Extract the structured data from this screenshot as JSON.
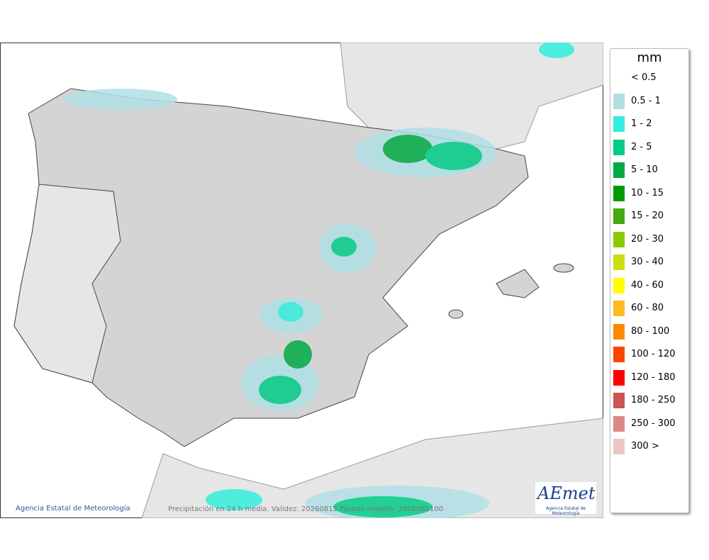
{
  "legend": {
    "title": "mm",
    "items": [
      {
        "label": "< 0.5"
      },
      {
        "label": "0.5 - 1",
        "color": "#b0e0e6"
      },
      {
        "label": "1 - 2",
        "color": "#33eedd"
      },
      {
        "label": "2 - 5",
        "color": "#00cc88"
      },
      {
        "label": "5 - 10",
        "color": "#00aa44"
      },
      {
        "label": "10 - 15",
        "color": "#009900"
      },
      {
        "label": "15 - 20",
        "color": "#44aa11"
      },
      {
        "label": "20 - 30",
        "color": "#88cc00"
      },
      {
        "label": "30 - 40",
        "color": "#ccdd11"
      },
      {
        "label": "40 - 60",
        "color": "#ffff00"
      },
      {
        "label": "60 - 80",
        "color": "#ffbb22"
      },
      {
        "label": "80 - 100",
        "color": "#ff8800"
      },
      {
        "label": "100 - 120",
        "color": "#ff4400"
      },
      {
        "label": "120 - 180",
        "color": "#ff0000"
      },
      {
        "label": "180 - 250",
        "color": "#cc5555"
      },
      {
        "label": "250 - 300",
        "color": "#dd8888"
      },
      {
        "label": "300 >",
        "color": "#eec4c4"
      }
    ]
  },
  "footer": {
    "agency": "Agencia Estatal de Meteorología",
    "caption": "Precipitación en 24 h media. Validez: 20260813 Pasada modelo: 2026081100"
  },
  "logo": {
    "name": "AEmet",
    "subtitle": "Agencia Estatal de Meteorología"
  }
}
